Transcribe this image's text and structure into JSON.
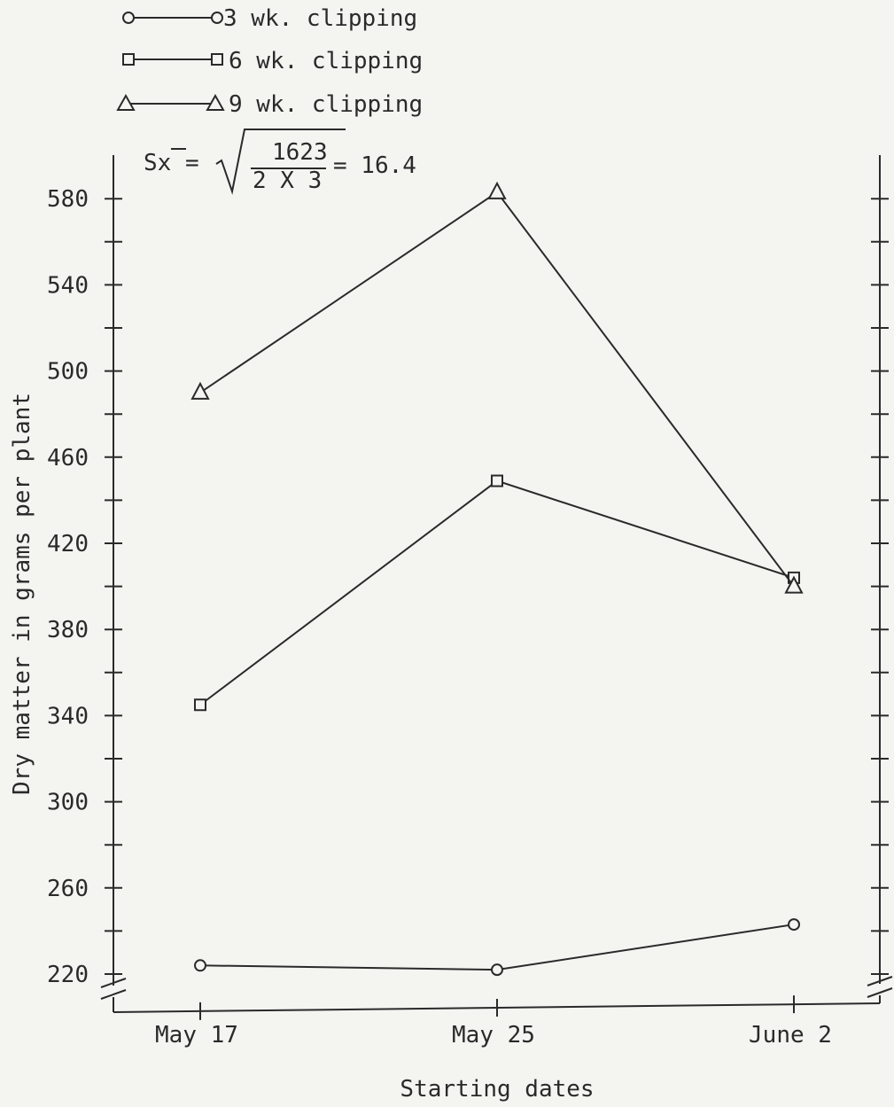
{
  "chart_data": {
    "type": "line",
    "categories": [
      "May 17",
      "May 25",
      "June 2"
    ],
    "series": [
      {
        "name": "3 wk. clipping",
        "marker": "circle",
        "values": [
          224,
          222,
          243
        ]
      },
      {
        "name": "6 wk. clipping",
        "marker": "square",
        "values": [
          345,
          449,
          404
        ]
      },
      {
        "name": "9 wk. clipping",
        "marker": "triangle",
        "values": [
          490,
          583,
          400
        ]
      }
    ],
    "xlabel": "Starting dates",
    "ylabel": "Dry matter in grams per plant",
    "yticks": [
      220,
      260,
      300,
      340,
      380,
      420,
      460,
      500,
      540,
      580
    ],
    "ylim": [
      210,
      595
    ],
    "axis_break": true,
    "grid": false,
    "legend_position": "top-left",
    "annotation": {
      "lhs": "Sx =",
      "numerator": "1623",
      "denominator": "2 X 3",
      "result": "= 16.4"
    },
    "colors": {
      "ink": "#2a2a2a",
      "paper": "#f4f4f1"
    }
  }
}
